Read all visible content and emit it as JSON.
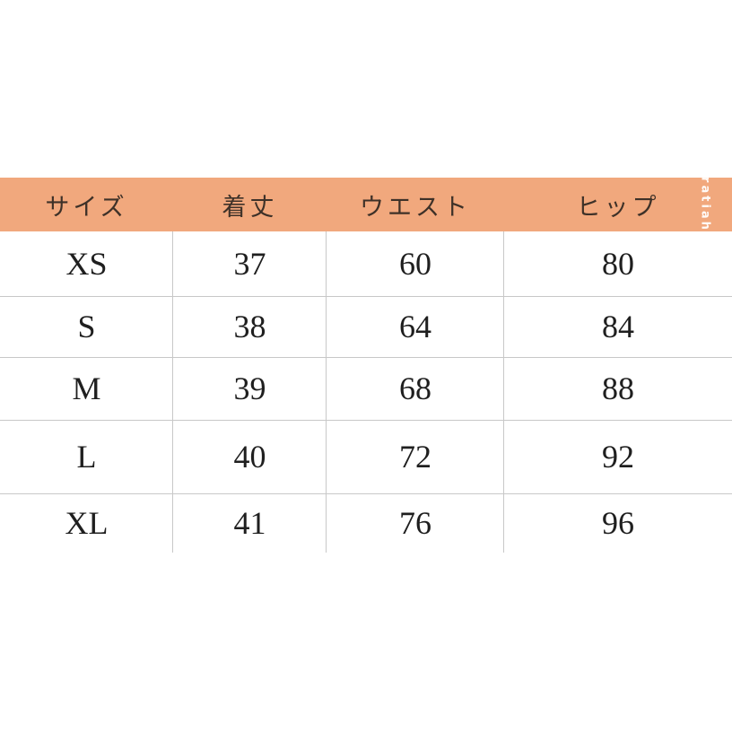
{
  "page": {
    "background_color": "#ffffff"
  },
  "header": {
    "background_color": "#f1a87d",
    "text_color": "#3e3128",
    "columns": [
      "サイズ",
      "着丈",
      "ウエスト",
      "ヒップ"
    ]
  },
  "watermark": {
    "text": "ratiah",
    "color": "#ffffff"
  },
  "table": {
    "grid_color": "#c8c8c8",
    "text_color": "#1f1f1f",
    "rows": [
      {
        "size": "XS",
        "length": "37",
        "waist": "60",
        "hip": "80"
      },
      {
        "size": "S",
        "length": "38",
        "waist": "64",
        "hip": "84"
      },
      {
        "size": "M",
        "length": "39",
        "waist": "68",
        "hip": "88"
      },
      {
        "size": "L",
        "length": "40",
        "waist": "72",
        "hip": "92"
      },
      {
        "size": "XL",
        "length": "41",
        "waist": "76",
        "hip": "96"
      }
    ]
  },
  "chart_data": {
    "type": "table",
    "columns": [
      "サイズ",
      "着丈",
      "ウエスト",
      "ヒップ"
    ],
    "rows": [
      [
        "XS",
        37,
        60,
        80
      ],
      [
        "S",
        38,
        64,
        84
      ],
      [
        "M",
        39,
        68,
        88
      ],
      [
        "L",
        40,
        72,
        92
      ],
      [
        "XL",
        41,
        76,
        96
      ]
    ]
  }
}
